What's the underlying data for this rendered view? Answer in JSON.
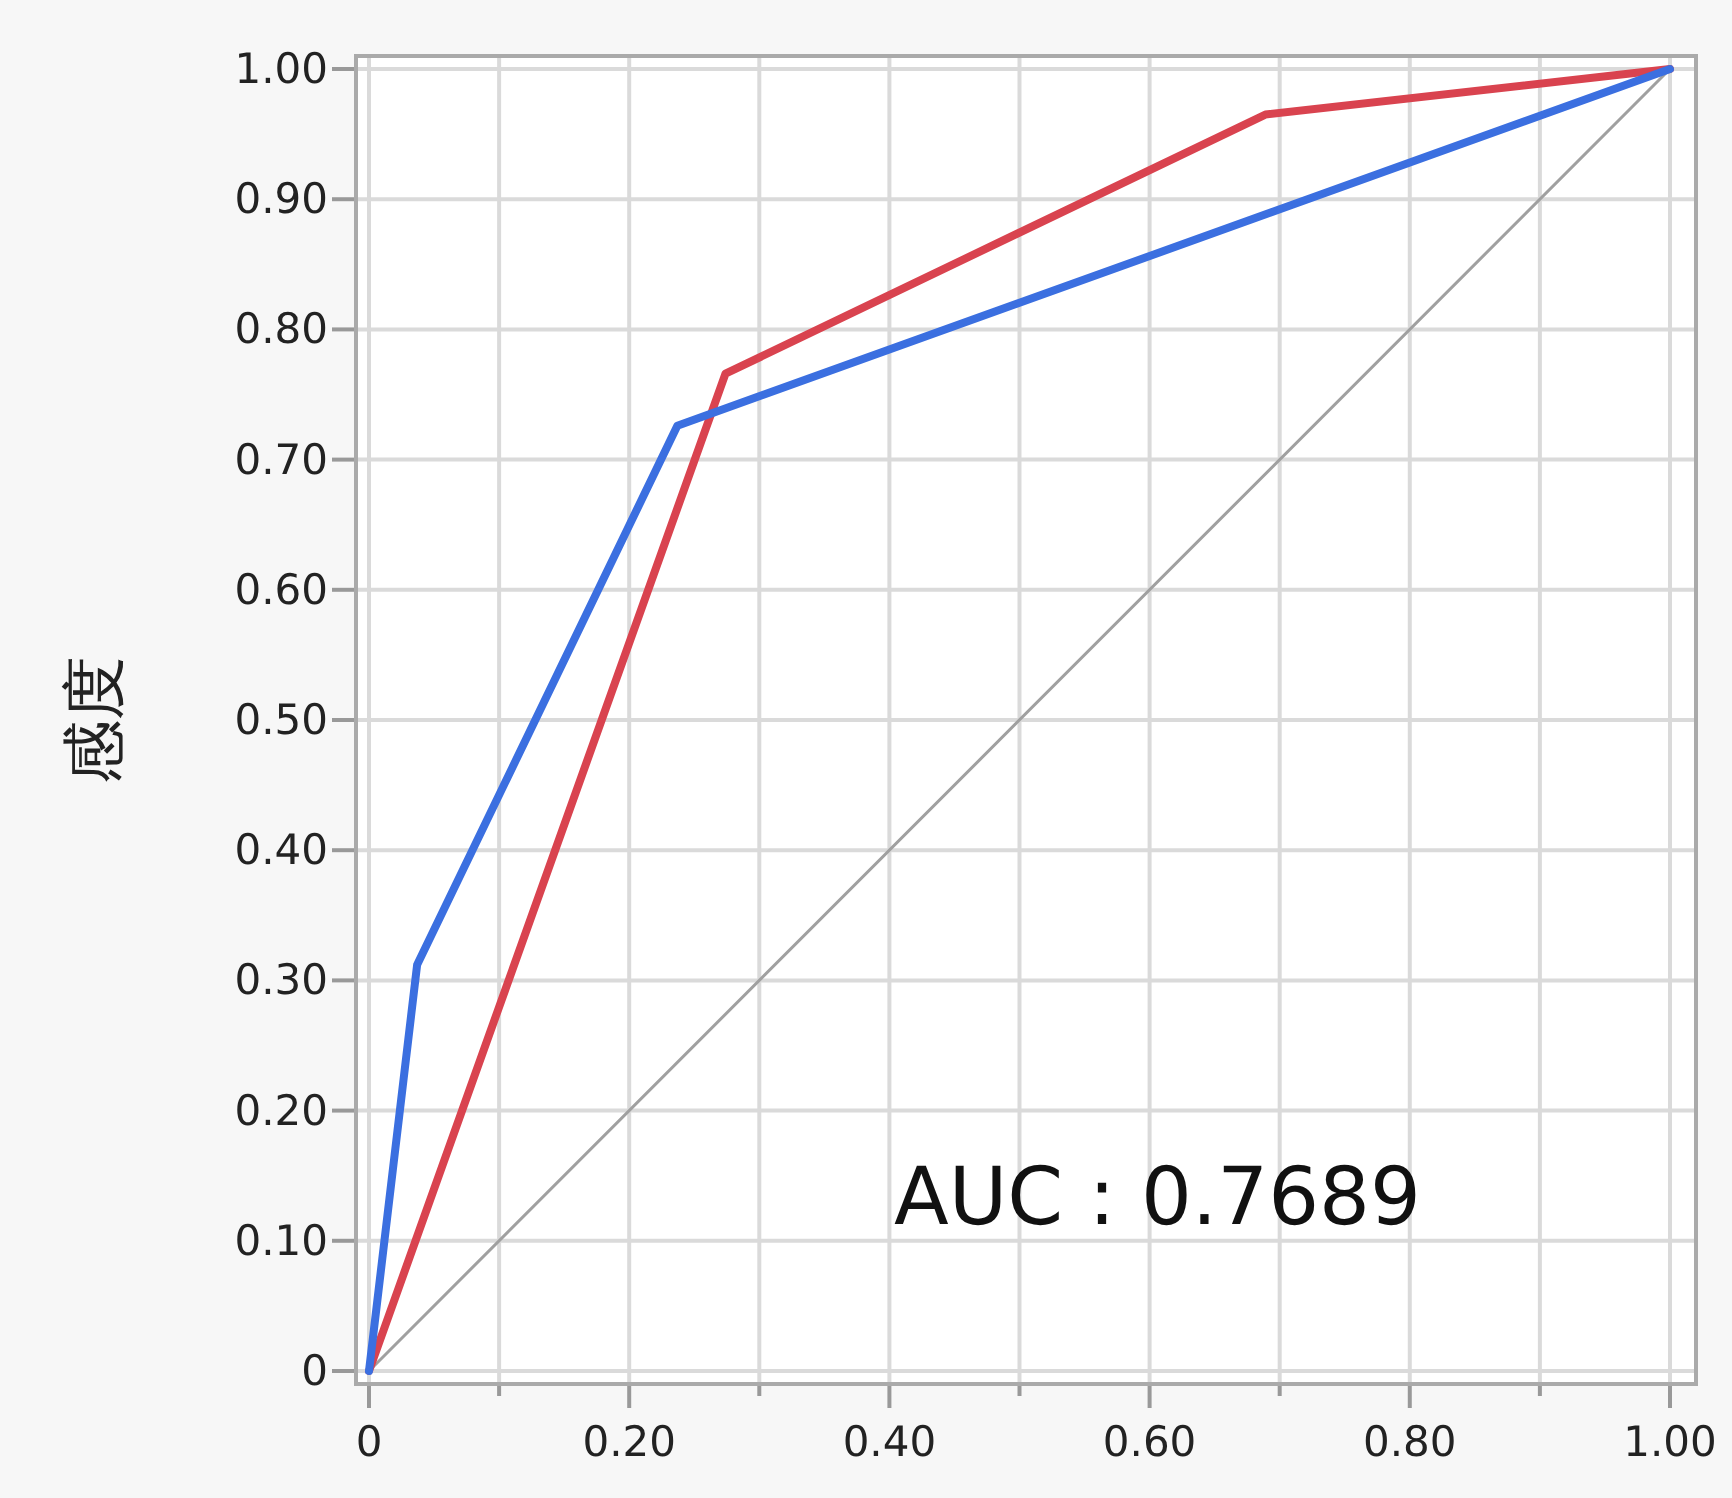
{
  "chart_data": {
    "type": "line",
    "ylabel": "感度",
    "annotations": [
      "AUC : 0.7689"
    ],
    "xlim": [
      -0.01,
      1.02
    ],
    "ylim": [
      -0.01,
      1.01
    ],
    "xticks": [
      0,
      {
        "value": 0.1,
        "label": null
      },
      {
        "value": 0.2,
        "label": "0.20"
      },
      {
        "value": 0.3,
        "label": null
      },
      {
        "value": 0.4,
        "label": "0.40"
      },
      {
        "value": 0.5,
        "label": null
      },
      {
        "value": 0.6,
        "label": "0.60"
      },
      {
        "value": 0.7,
        "label": null
      },
      {
        "value": 0.8,
        "label": "0.80"
      },
      {
        "value": 0.9,
        "label": null
      },
      {
        "value": 1,
        "label": "1.00"
      }
    ],
    "yticks": [
      0,
      {
        "value": 0.1,
        "label": "0.10"
      },
      {
        "value": 0.2,
        "label": "0.20"
      },
      {
        "value": 0.3,
        "label": "0.30"
      },
      {
        "value": 0.4,
        "label": "0.40"
      },
      {
        "value": 0.5,
        "label": "0.50"
      },
      {
        "value": 0.6,
        "label": "0.60"
      },
      {
        "value": 0.7,
        "label": "0.70"
      },
      {
        "value": 0.8,
        "label": "0.80"
      },
      {
        "value": 0.9,
        "label": "0.90"
      },
      {
        "value": 1,
        "label": "1.00"
      }
    ],
    "grid": true,
    "marker": "none",
    "series": [
      {
        "color": "#a0a0a0",
        "x": [
          0,
          1
        ],
        "values": [
          0,
          1
        ]
      },
      {
        "color": "#d9434f",
        "x": [
          0,
          0.274,
          0.689,
          1
        ],
        "values": [
          0,
          0.766,
          0.965,
          1
        ]
      },
      {
        "color": "#3b6fe0",
        "x": [
          0,
          0.037,
          0.237,
          1
        ],
        "values": [
          0,
          0.312,
          0.726,
          1
        ]
      }
    ]
  }
}
